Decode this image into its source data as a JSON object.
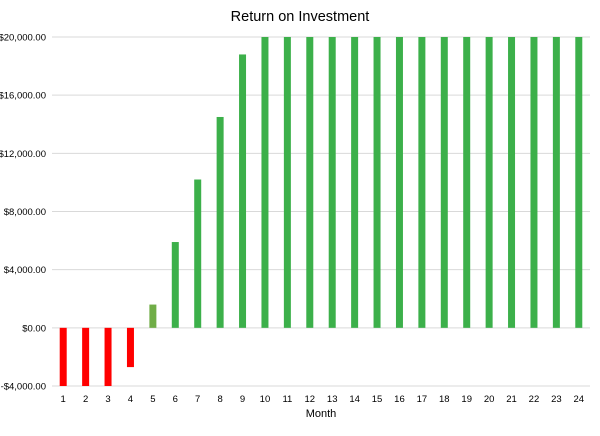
{
  "chart_data": {
    "type": "bar",
    "title": "Return on Investment",
    "xlabel": "Month",
    "ylabel": "",
    "ylim": [
      -4000,
      20000
    ],
    "y_ticks": [
      -4000,
      0,
      4000,
      8000,
      12000,
      16000,
      20000
    ],
    "y_tick_labels": [
      "-$4,000.00",
      "$0.00",
      "$4,000.00",
      "$8,000.00",
      "$12,000.00",
      "$16,000.00",
      "$20,000.00"
    ],
    "grid": true,
    "legend": "none",
    "categories": [
      "1",
      "2",
      "3",
      "4",
      "5",
      "6",
      "7",
      "8",
      "9",
      "10",
      "11",
      "12",
      "13",
      "14",
      "15",
      "16",
      "17",
      "18",
      "19",
      "20",
      "21",
      "22",
      "23",
      "24"
    ],
    "values": [
      -4000,
      -4000,
      -4000,
      -2700,
      1600,
      5900,
      10200,
      14500,
      18800,
      20000,
      20000,
      20000,
      20000,
      20000,
      20000,
      20000,
      20000,
      20000,
      20000,
      20000,
      20000,
      20000,
      20000,
      20000
    ],
    "colors": {
      "negative": "#ff0000",
      "small_positive": "#70ad47",
      "positive": "#3cb04a"
    }
  }
}
